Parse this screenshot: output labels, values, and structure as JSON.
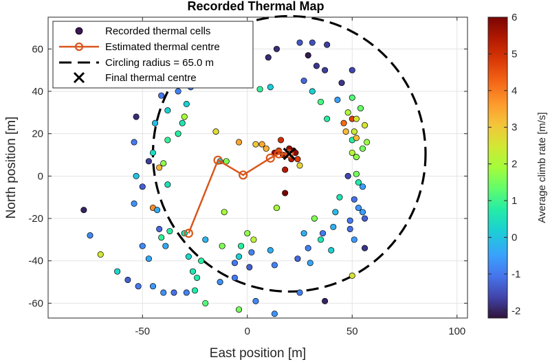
{
  "chart_data": {
    "type": "scatter",
    "title": "Recorded Thermal Map",
    "xlabel": "East position [m]",
    "ylabel": "North position [m]",
    "xlim": [
      -95,
      105
    ],
    "ylim": [
      -67,
      75
    ],
    "x_ticks": [
      -50,
      0,
      50,
      100
    ],
    "y_ticks": [
      -60,
      -40,
      -20,
      0,
      20,
      40,
      60
    ],
    "grid": true,
    "legend_position": "top-left",
    "colorbar": {
      "label": "Average climb rate [m/s]",
      "range": [
        -2.2,
        6
      ],
      "ticks": [
        -2,
        -1,
        0,
        1,
        2,
        3,
        4,
        5,
        6
      ],
      "colormap": "turbo"
    },
    "series": [
      {
        "name": "Recorded thermal cells",
        "kind": "scatter",
        "marker_color": "#3b1656",
        "points": [
          [
            -78,
            -16,
            -2.0
          ],
          [
            -75,
            -28,
            -0.8
          ],
          [
            -70,
            -37,
            2.5
          ],
          [
            -62,
            -45,
            0.3
          ],
          [
            -57,
            -49,
            -1.3
          ],
          [
            -52,
            -52,
            -1.0
          ],
          [
            -50,
            -33,
            -0.8
          ],
          [
            -47,
            -39,
            -0.4
          ],
          [
            -45,
            -52,
            -0.6
          ],
          [
            -40,
            -55,
            -0.7
          ],
          [
            -35,
            -55,
            -1.1
          ],
          [
            -29,
            -55,
            -0.9
          ],
          [
            -25,
            -54,
            0.7
          ],
          [
            -20,
            -60,
            1.2
          ],
          [
            -13,
            -50,
            -0.7
          ],
          [
            -6,
            -48,
            -1.0
          ],
          [
            -4,
            -63,
            1.5
          ],
          [
            4,
            -59,
            -0.8
          ],
          [
            13,
            -65,
            -0.7
          ],
          [
            25,
            -55,
            -0.9
          ],
          [
            37,
            -59,
            -2.0
          ],
          [
            50,
            -47,
            2.6
          ],
          [
            56,
            -34,
            -1.8
          ],
          [
            55,
            -17,
            -0.5
          ],
          [
            -53,
            28,
            -1.9
          ],
          [
            -54,
            16,
            -1.0
          ],
          [
            -53,
            0,
            0.0
          ],
          [
            -54,
            -13,
            -0.7
          ],
          [
            -50,
            -5,
            -1.3
          ],
          [
            -47,
            7,
            -1.7
          ],
          [
            -45,
            11,
            0.4
          ],
          [
            -44,
            25,
            -0.1
          ],
          [
            -45,
            -15,
            3.8
          ],
          [
            -43,
            -16,
            -0.3
          ],
          [
            -42,
            -25,
            -1.2
          ],
          [
            -41,
            -29,
            0.9
          ],
          [
            -39,
            -33,
            -0.4
          ],
          [
            -41,
            38,
            -1.0
          ],
          [
            -38,
            31,
            0.2
          ],
          [
            -38,
            17,
            0.9
          ],
          [
            -40,
            6,
            1.7
          ],
          [
            -42,
            4,
            3.3
          ],
          [
            -38,
            -4,
            0.5
          ],
          [
            -37,
            -26,
            0.8
          ],
          [
            -35,
            46,
            -1.7
          ],
          [
            -33,
            40,
            -0.9
          ],
          [
            -33,
            20,
            0.8
          ],
          [
            -31,
            25,
            0.6
          ],
          [
            -30,
            28,
            1.9
          ],
          [
            -29,
            34,
            0.2
          ],
          [
            -27,
            42,
            -1.0
          ],
          [
            -30,
            48,
            -1.0
          ],
          [
            -30,
            -27,
            0.6
          ],
          [
            -28,
            -38,
            0.3
          ],
          [
            -26,
            -45,
            0.6
          ],
          [
            -24,
            -48,
            0.7
          ],
          [
            -22,
            -40,
            0.8
          ],
          [
            -20,
            -30,
            -0.2
          ],
          [
            -17,
            55,
            -1.7
          ],
          [
            -16,
            48,
            -1.8
          ],
          [
            -15,
            21,
            2.7
          ],
          [
            -13,
            7,
            0.1
          ],
          [
            -12,
            -33,
            1.6
          ],
          [
            -11,
            -17,
            1.9
          ],
          [
            -10,
            7,
            1.6
          ],
          [
            -8,
            51,
            -1.5
          ],
          [
            -7,
            45,
            -1.3
          ],
          [
            -6,
            -41,
            -1.0
          ],
          [
            -4,
            -38,
            0.2
          ],
          [
            -4,
            16,
            3.5
          ],
          [
            -3,
            -33,
            0.8
          ],
          [
            -2,
            45,
            -1.0
          ],
          [
            -1,
            60,
            -2.0
          ],
          [
            0,
            -27,
            1.7
          ],
          [
            1,
            -43,
            -1.3
          ],
          [
            2,
            -36,
            -0.9
          ],
          [
            3,
            -30,
            2.2
          ],
          [
            4,
            15,
            3.0
          ],
          [
            6,
            41,
            0.9
          ],
          [
            7,
            15,
            3.4
          ],
          [
            9,
            13,
            3.3
          ],
          [
            10,
            56,
            -1.9
          ],
          [
            11,
            42,
            0.1
          ],
          [
            11,
            -35,
            -0.3
          ],
          [
            13,
            11,
            5.7
          ],
          [
            13,
            -42,
            -0.9
          ],
          [
            14,
            60,
            -1.9
          ],
          [
            14,
            -15,
            1.9
          ],
          [
            15,
            12,
            4.8
          ],
          [
            16,
            17,
            5.0
          ],
          [
            17,
            10,
            5.7
          ],
          [
            18,
            3,
            5.4
          ],
          [
            18,
            -8,
            6.0
          ],
          [
            20,
            13,
            5.7
          ],
          [
            21,
            8,
            5.4
          ],
          [
            22,
            12,
            5.2
          ],
          [
            23,
            11,
            5.8
          ],
          [
            24,
            8,
            4.8
          ],
          [
            24,
            -39,
            -1.2
          ],
          [
            25,
            63,
            -1.4
          ],
          [
            27,
            45,
            -1.2
          ],
          [
            25,
            5,
            2.8
          ],
          [
            27,
            -27,
            -0.3
          ],
          [
            29,
            57,
            -2.1
          ],
          [
            29,
            -34,
            -0.9
          ],
          [
            30,
            -41,
            -0.4
          ],
          [
            31,
            40,
            0.2
          ],
          [
            31,
            63,
            -1.5
          ],
          [
            32,
            -20,
            1.6
          ],
          [
            33,
            52,
            -1.8
          ],
          [
            35,
            -30,
            0.6
          ],
          [
            35,
            35,
            1.1
          ],
          [
            36,
            -27,
            -1.0
          ],
          [
            37,
            50,
            -1.7
          ],
          [
            38,
            62,
            -1.7
          ],
          [
            38,
            27,
            0.8
          ],
          [
            40,
            -35,
            0.2
          ],
          [
            41,
            -24,
            -0.3
          ],
          [
            42,
            -17,
            -0.1
          ],
          [
            43,
            36,
            -0.5
          ],
          [
            44,
            -10,
            0.6
          ],
          [
            45,
            44,
            -1.8
          ],
          [
            46,
            25,
            4.2
          ],
          [
            47,
            21,
            3.2
          ],
          [
            48,
            30,
            2.0
          ],
          [
            48,
            0,
            -1.6
          ],
          [
            49,
            -21,
            -1.0
          ],
          [
            50,
            50,
            -1.6
          ],
          [
            50,
            37,
            1.2
          ],
          [
            50,
            27,
            4.7
          ],
          [
            50,
            17,
            0.8
          ],
          [
            50,
            11,
            2.1
          ],
          [
            51,
            21,
            2.4
          ],
          [
            51,
            -11,
            -1.1
          ],
          [
            51,
            -30,
            -0.6
          ],
          [
            52,
            27,
            2.5
          ],
          [
            52,
            18,
            3.2
          ],
          [
            52,
            9,
            1.7
          ],
          [
            52,
            1,
            1.5
          ],
          [
            53,
            -3,
            0.7
          ],
          [
            53,
            -15,
            -0.6
          ],
          [
            54,
            32,
            1.4
          ],
          [
            55,
            -5,
            -0.5
          ],
          [
            55,
            13,
            1.5
          ],
          [
            56,
            24,
            2.5
          ],
          [
            57,
            16,
            1.8
          ],
          [
            56,
            -20,
            -1.3
          ],
          [
            49,
            -25,
            -1.1
          ]
        ]
      },
      {
        "name": "Estimated thermal centre",
        "kind": "line",
        "color": "#d9561c",
        "points": [
          [
            -28,
            -27
          ],
          [
            -14,
            7.5
          ],
          [
            -2,
            0.5
          ],
          [
            11,
            8.5
          ],
          [
            15,
            10.5
          ],
          [
            20,
            10.5
          ]
        ]
      },
      {
        "name": "Circling radius = 65.0 m",
        "kind": "circle",
        "color": "#000000",
        "center": [
          20,
          10.5
        ],
        "radius": 65.0
      },
      {
        "name": "Final thermal centre",
        "kind": "point",
        "color": "#000000",
        "point": [
          20,
          10.5
        ]
      }
    ]
  }
}
